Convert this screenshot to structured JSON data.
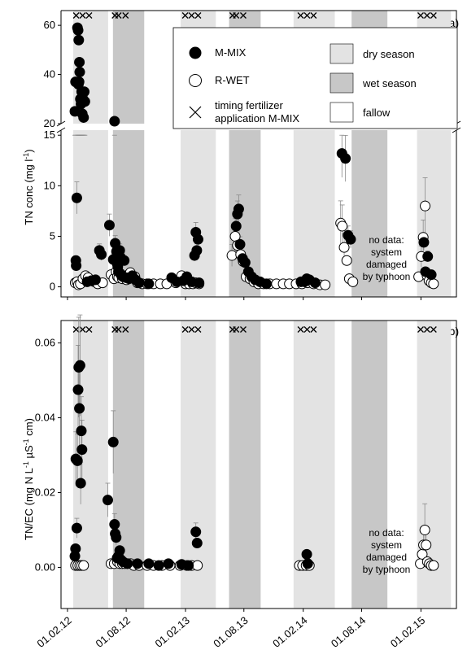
{
  "chart_data": [
    {
      "panel_label": "(a)",
      "type": "scatter",
      "ylabel_main": "TN conc (mg l",
      "ylabel_sup": "-1",
      "ylabel_end": ")",
      "yaxis": "broken",
      "ylim_lower": [
        -1,
        15.5
      ],
      "ylim_upper": [
        20,
        66
      ],
      "yticks_lower": [
        0,
        5,
        10,
        15
      ],
      "yticks_upper": [
        20,
        40,
        60
      ],
      "note_lines": [
        "no data:",
        "system",
        "damaged",
        "by typhoon"
      ],
      "legend": {
        "m_mix": "M-MIX",
        "r_wet": "R-WET",
        "fert_line1": "timing fertilizer",
        "fert_line2": "application M-MIX",
        "dry": "dry season",
        "wet": "wet season",
        "fallow": "fallow"
      },
      "series": [
        {
          "name": "M-MIX",
          "marker": "filled-circle",
          "points": [
            [
              "2012-02-24",
              25
            ],
            [
              "2012-02-26",
              37
            ],
            [
              "2012-02-27",
              2.6
            ],
            [
              "2012-02-28",
              2.1
            ],
            [
              "2012-03-01",
              8.8
            ],
            [
              "2012-03-03",
              59
            ],
            [
              "2012-03-05",
              58
            ],
            [
              "2012-03-06",
              36
            ],
            [
              "2012-03-07",
              54
            ],
            [
              "2012-03-08",
              37
            ],
            [
              "2012-03-09",
              45
            ],
            [
              "2012-03-10",
              41
            ],
            [
              "2012-03-12",
              30
            ],
            [
              "2012-03-14",
              28
            ],
            [
              "2012-03-16",
              33
            ],
            [
              "2012-03-18",
              24
            ],
            [
              "2012-03-20",
              30
            ],
            [
              "2012-03-22",
              22.5
            ],
            [
              "2012-03-24",
              33
            ],
            [
              "2012-03-26",
              29
            ],
            [
              "2012-04-02",
              0.5
            ],
            [
              "2012-04-15",
              0.6
            ],
            [
              "2012-04-28",
              0.7
            ],
            [
              "2012-05-10",
              3.6
            ],
            [
              "2012-05-16",
              3.2
            ],
            [
              "2012-06-10",
              6.1
            ],
            [
              "2012-06-22",
              2.7
            ],
            [
              "2012-06-26",
              21
            ],
            [
              "2012-06-28",
              4.3
            ],
            [
              "2012-07-02",
              3.5
            ],
            [
              "2012-07-04",
              2.3
            ],
            [
              "2012-07-06",
              2.0
            ],
            [
              "2012-07-08",
              1.5
            ],
            [
              "2012-07-12",
              3.6
            ],
            [
              "2012-07-15",
              2.9
            ],
            [
              "2012-07-18",
              1.1
            ],
            [
              "2012-07-22",
              1.0
            ],
            [
              "2012-07-26",
              2.6
            ],
            [
              "2012-08-01",
              0.9
            ],
            [
              "2012-08-10",
              0.8
            ],
            [
              "2012-08-20",
              1.1
            ],
            [
              "2012-08-30",
              0.7
            ],
            [
              "2012-09-10",
              0.4
            ],
            [
              "2012-10-10",
              0.3
            ],
            [
              "2012-12-20",
              0.9
            ],
            [
              "2013-01-05",
              0.5
            ],
            [
              "2013-01-25",
              0.6
            ],
            [
              "2013-02-05",
              1.0
            ],
            [
              "2013-02-20",
              0.5
            ],
            [
              "2013-03-01",
              3.1
            ],
            [
              "2013-03-05",
              5.4
            ],
            [
              "2013-03-08",
              3.6
            ],
            [
              "2013-03-12",
              4.7
            ],
            [
              "2013-03-15",
              0.4
            ],
            [
              "2013-07-08",
              6.0
            ],
            [
              "2013-07-12",
              7.2
            ],
            [
              "2013-07-16",
              7.7
            ],
            [
              "2013-07-20",
              4.2
            ],
            [
              "2013-07-28",
              2.8
            ],
            [
              "2013-08-05",
              2.4
            ],
            [
              "2013-08-15",
              1.5
            ],
            [
              "2013-08-25",
              1.0
            ],
            [
              "2013-09-05",
              0.7
            ],
            [
              "2013-09-20",
              0.5
            ],
            [
              "2013-10-10",
              0.3
            ],
            [
              "2014-01-25",
              0.5
            ],
            [
              "2014-02-05",
              0.5
            ],
            [
              "2014-02-12",
              0.8
            ],
            [
              "2014-02-20",
              0.7
            ],
            [
              "2014-03-10",
              0.4
            ],
            [
              "2014-06-01",
              13.2
            ],
            [
              "2014-06-12",
              12.7
            ],
            [
              "2014-06-20",
              5.1
            ],
            [
              "2014-06-28",
              4.7
            ],
            [
              "2015-02-10",
              4.4
            ],
            [
              "2015-02-15",
              1.5
            ],
            [
              "2015-02-22",
              3.0
            ],
            [
              "2015-03-05",
              1.2
            ]
          ]
        },
        {
          "name": "R-WET",
          "marker": "open-circle",
          "points": [
            [
              "2012-02-25",
              0.4
            ],
            [
              "2012-03-02",
              0.5
            ],
            [
              "2012-03-06",
              0.2
            ],
            [
              "2012-03-12",
              0.3
            ],
            [
              "2012-03-20",
              0.8
            ],
            [
              "2012-03-28",
              1.1
            ],
            [
              "2012-04-05",
              0.9
            ],
            [
              "2012-04-15",
              0.6
            ],
            [
              "2012-04-25",
              0.5
            ],
            [
              "2012-05-05",
              0.3
            ],
            [
              "2012-05-20",
              0.4
            ],
            [
              "2012-06-15",
              1.2
            ],
            [
              "2012-06-24",
              0.8
            ],
            [
              "2012-07-01",
              1.5
            ],
            [
              "2012-07-05",
              1.0
            ],
            [
              "2012-07-09",
              0.9
            ],
            [
              "2012-07-14",
              1.3
            ],
            [
              "2012-07-20",
              0.8
            ],
            [
              "2012-07-26",
              1.0
            ],
            [
              "2012-08-02",
              0.7
            ],
            [
              "2012-08-08",
              1.2
            ],
            [
              "2012-08-14",
              1.4
            ],
            [
              "2012-08-20",
              0.9
            ],
            [
              "2012-08-28",
              1.0
            ],
            [
              "2012-09-05",
              0.4
            ],
            [
              "2012-09-20",
              0.3
            ],
            [
              "2012-10-05",
              0.3
            ],
            [
              "2012-10-25",
              0.3
            ],
            [
              "2012-11-15",
              0.3
            ],
            [
              "2012-12-05",
              0.3
            ],
            [
              "2013-01-02",
              0.4
            ],
            [
              "2013-01-20",
              1.1
            ],
            [
              "2013-02-01",
              0.3
            ],
            [
              "2013-02-12",
              0.3
            ],
            [
              "2013-02-24",
              0.3
            ],
            [
              "2013-03-05",
              0.4
            ],
            [
              "2013-03-15",
              0.3
            ],
            [
              "2013-06-25",
              3.1
            ],
            [
              "2013-07-05",
              5.0
            ],
            [
              "2013-07-12",
              4.1
            ],
            [
              "2013-07-22",
              3.2
            ],
            [
              "2013-07-30",
              2.5
            ],
            [
              "2013-08-08",
              1.0
            ],
            [
              "2013-08-20",
              0.8
            ],
            [
              "2013-09-01",
              0.5
            ],
            [
              "2013-09-15",
              0.3
            ],
            [
              "2013-10-01",
              0.3
            ],
            [
              "2013-10-20",
              0.3
            ],
            [
              "2013-11-10",
              0.3
            ],
            [
              "2013-12-01",
              0.3
            ],
            [
              "2013-12-20",
              0.3
            ],
            [
              "2014-01-10",
              0.3
            ],
            [
              "2014-01-28",
              0.3
            ],
            [
              "2014-02-15",
              0.4
            ],
            [
              "2014-03-05",
              0.3
            ],
            [
              "2014-03-25",
              0.2
            ],
            [
              "2014-04-10",
              0.2
            ],
            [
              "2014-05-28",
              6.3
            ],
            [
              "2014-06-02",
              6.0
            ],
            [
              "2014-06-08",
              3.9
            ],
            [
              "2014-06-16",
              2.6
            ],
            [
              "2014-06-24",
              0.8
            ],
            [
              "2014-07-05",
              0.5
            ],
            [
              "2015-01-25",
              1.0
            ],
            [
              "2015-02-02",
              3.0
            ],
            [
              "2015-02-08",
              4.9
            ],
            [
              "2015-02-14",
              8.0
            ],
            [
              "2015-02-20",
              1.1
            ],
            [
              "2015-02-26",
              0.6
            ],
            [
              "2015-03-05",
              0.4
            ],
            [
              "2015-03-12",
              0.3
            ]
          ]
        }
      ]
    },
    {
      "panel_label": "(b)",
      "type": "scatter",
      "ylabel_main": "TN/EC  (mg N L",
      "ylabel_sup1": "-1",
      "ylabel_mid": "  µS",
      "ylabel_sup2": "-1",
      "ylabel_end": " cm)",
      "ylim": [
        -0.011,
        0.066
      ],
      "yticks": [
        "0.00",
        "0.02",
        "0.04",
        "0.06"
      ],
      "note_lines": [
        "no data:",
        "system",
        "damaged",
        "by typhoon"
      ],
      "series": [
        {
          "name": "M-MIX",
          "marker": "filled-circle",
          "points": [
            [
              "2012-02-24",
              0.003
            ],
            [
              "2012-02-26",
              0.005
            ],
            [
              "2012-02-27",
              0.029
            ],
            [
              "2012-03-01",
              0.0105
            ],
            [
              "2012-03-03",
              0.0285
            ],
            [
              "2012-03-05",
              0.0475
            ],
            [
              "2012-03-07",
              0.0535
            ],
            [
              "2012-03-09",
              0.0425
            ],
            [
              "2012-03-11",
              0.054
            ],
            [
              "2012-03-13",
              0.0225
            ],
            [
              "2012-03-15",
              0.0365
            ],
            [
              "2012-03-17",
              0.0315
            ],
            [
              "2012-06-05",
              0.018
            ],
            [
              "2012-06-22",
              0.0335
            ],
            [
              "2012-06-26",
              0.0115
            ],
            [
              "2012-06-28",
              0.009
            ],
            [
              "2012-07-01",
              0.008
            ],
            [
              "2012-07-04",
              0.0025
            ],
            [
              "2012-07-08",
              0.003
            ],
            [
              "2012-07-12",
              0.0045
            ],
            [
              "2012-07-16",
              0.002
            ],
            [
              "2012-07-22",
              0.0015
            ],
            [
              "2012-08-05",
              0.001
            ],
            [
              "2012-09-05",
              0.001
            ],
            [
              "2012-10-10",
              0.001
            ],
            [
              "2012-11-10",
              0.0005
            ],
            [
              "2012-12-10",
              0.001
            ],
            [
              "2013-01-20",
              0.0008
            ],
            [
              "2013-02-10",
              0.0005
            ],
            [
              "2013-03-05",
              0.0095
            ],
            [
              "2013-03-09",
              0.0065
            ],
            [
              "2014-02-12",
              0.0035
            ],
            [
              "2014-02-15",
              0.001
            ]
          ]
        },
        {
          "name": "R-WET",
          "marker": "open-circle",
          "points": [
            [
              "2012-02-26",
              0.0005
            ],
            [
              "2012-03-04",
              0.0005
            ],
            [
              "2012-03-10",
              0.0005
            ],
            [
              "2012-03-16",
              0.0005
            ],
            [
              "2012-03-22",
              0.0005
            ],
            [
              "2012-06-15",
              0.001
            ],
            [
              "2012-06-25",
              0.001
            ],
            [
              "2012-07-05",
              0.0015
            ],
            [
              "2012-07-12",
              0.001
            ],
            [
              "2012-07-20",
              0.001
            ],
            [
              "2012-07-28",
              0.001
            ],
            [
              "2012-08-05",
              0.001
            ],
            [
              "2012-08-15",
              0.001
            ],
            [
              "2012-08-25",
              0.0005
            ],
            [
              "2012-09-10",
              0.0005
            ],
            [
              "2012-10-05",
              0.0005
            ],
            [
              "2012-10-25",
              0.0005
            ],
            [
              "2012-11-20",
              0.0005
            ],
            [
              "2012-12-15",
              0.0005
            ],
            [
              "2013-01-15",
              0.0005
            ],
            [
              "2013-02-05",
              0.0005
            ],
            [
              "2013-02-20",
              0.0005
            ],
            [
              "2013-03-10",
              0.0005
            ],
            [
              "2014-01-20",
              0.0005
            ],
            [
              "2014-01-30",
              0.0005
            ],
            [
              "2014-02-10",
              0.0005
            ],
            [
              "2014-02-20",
              0.0005
            ],
            [
              "2015-01-30",
              0.001
            ],
            [
              "2015-02-05",
              0.0035
            ],
            [
              "2015-02-09",
              0.006
            ],
            [
              "2015-02-13",
              0.01
            ],
            [
              "2015-02-17",
              0.006
            ],
            [
              "2015-02-21",
              0.0015
            ],
            [
              "2015-02-27",
              0.001
            ],
            [
              "2015-03-05",
              0.0005
            ],
            [
              "2015-03-12",
              0.0005
            ]
          ]
        }
      ]
    }
  ],
  "x_axis": {
    "range": [
      "2012-01-12",
      "2015-05-22"
    ],
    "ticks": [
      "01.02.12",
      "01.08.12",
      "01.02.13",
      "01.08.13",
      "01.02.14",
      "01.08.14",
      "01.02.15"
    ],
    "tick_dates": [
      "2012-02-01",
      "2012-08-01",
      "2013-02-01",
      "2013-08-01",
      "2014-02-01",
      "2014-08-01",
      "2015-02-01"
    ]
  },
  "seasons": [
    {
      "type": "dry",
      "start": "2012-02-19",
      "end": "2012-06-06"
    },
    {
      "type": "wet",
      "start": "2012-06-21",
      "end": "2012-09-26"
    },
    {
      "type": "dry",
      "start": "2013-01-17",
      "end": "2013-05-06"
    },
    {
      "type": "wet",
      "start": "2013-06-16",
      "end": "2013-09-22"
    },
    {
      "type": "dry",
      "start": "2014-01-02",
      "end": "2014-05-10"
    },
    {
      "type": "wet",
      "start": "2014-07-01",
      "end": "2014-10-20"
    },
    {
      "type": "dry",
      "start": "2015-01-20",
      "end": "2015-05-05"
    }
  ],
  "fertilizer_dates": [
    "2012-02-28",
    "2012-03-19",
    "2012-04-08",
    "2012-06-27",
    "2012-07-08",
    "2012-07-30",
    "2013-01-31",
    "2013-02-20",
    "2013-03-12",
    "2013-06-27",
    "2013-07-08",
    "2013-07-30",
    "2014-01-24",
    "2014-02-13",
    "2014-03-05",
    "2015-01-31",
    "2015-02-20",
    "2015-03-12"
  ],
  "colors": {
    "dry": "#e3e3e3",
    "wet": "#c7c7c7",
    "fallow": "#ffffff",
    "marker": "#000000",
    "errorbar": "#8a8a8a"
  }
}
